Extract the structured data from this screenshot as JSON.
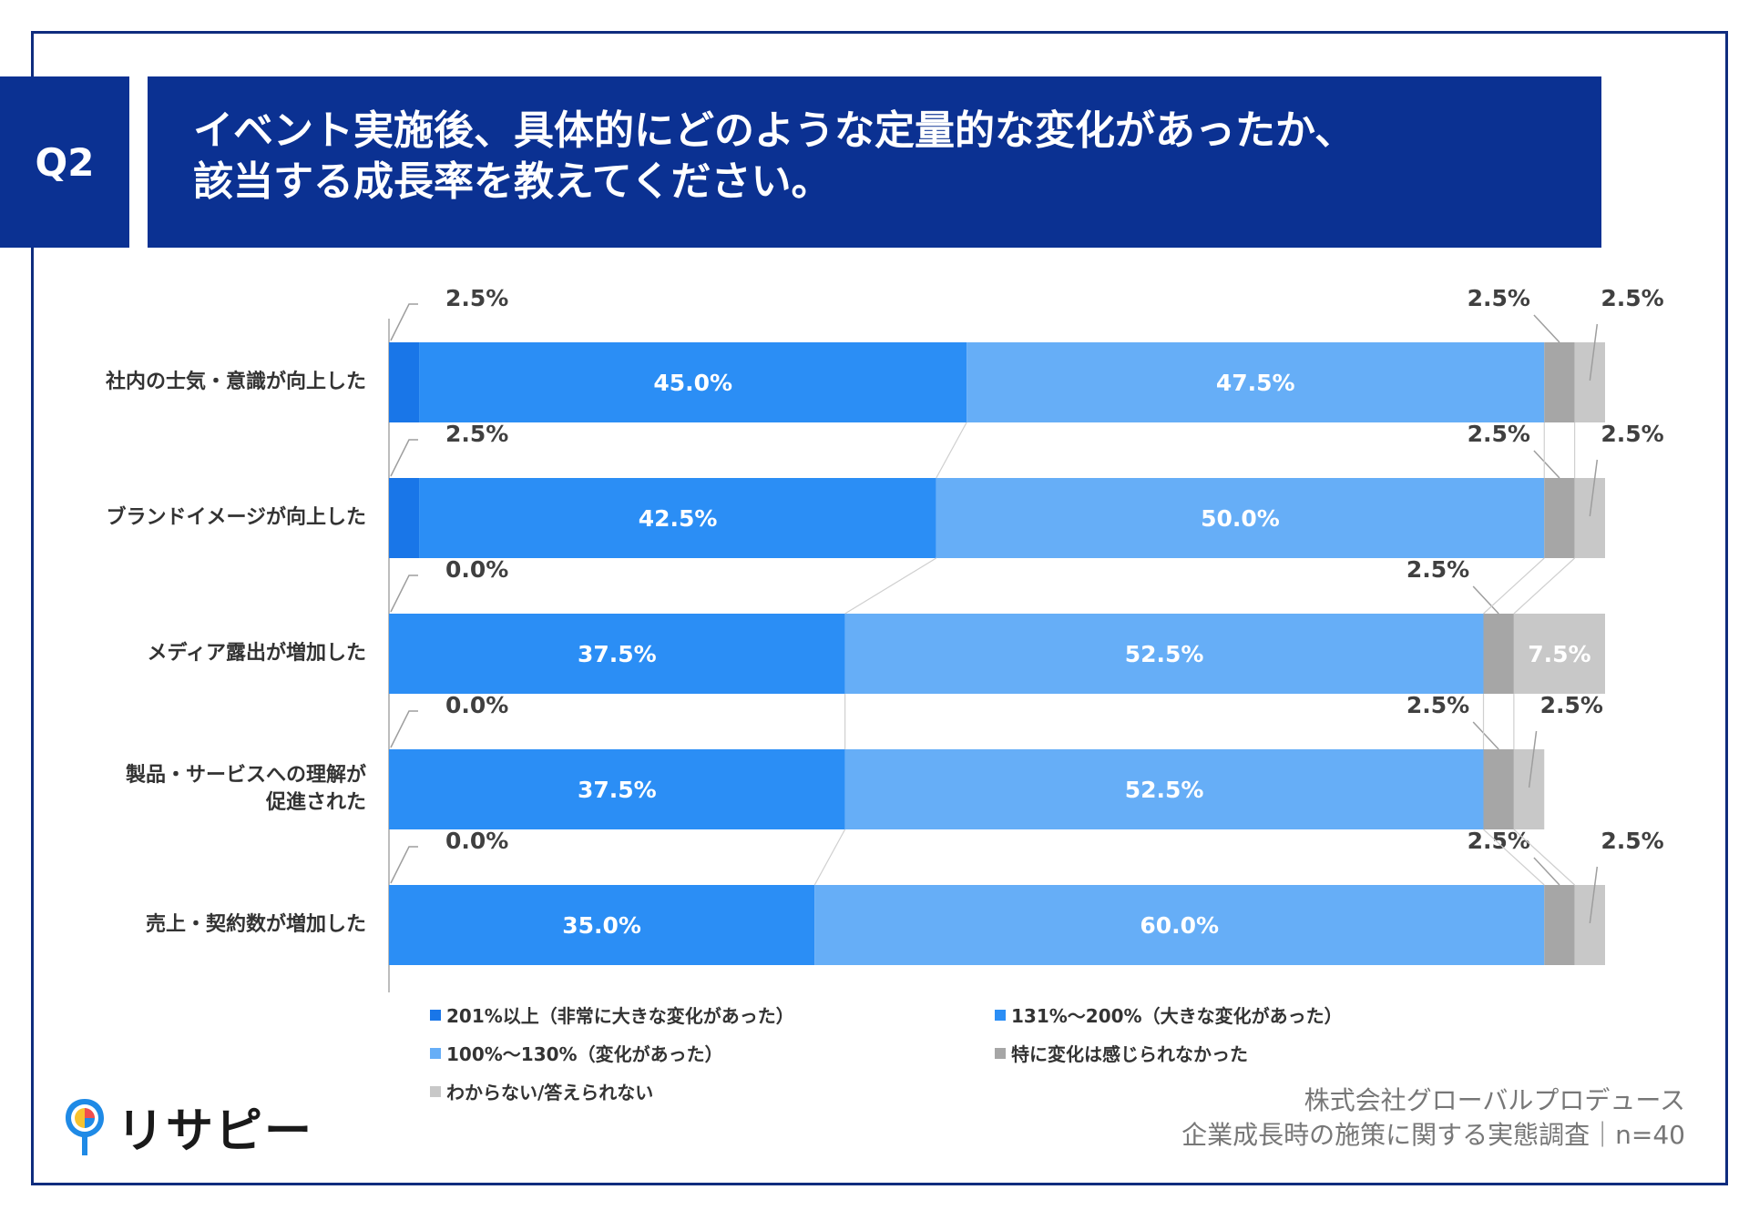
{
  "question_badge": "Q2",
  "title_lines": [
    "イベント実施後、具体的にどのような定量的な変化があったか、",
    "該当する成長率を教えてください。"
  ],
  "chart_data": {
    "type": "bar",
    "orientation": "horizontal",
    "stacked": true,
    "unit": "%",
    "categories": [
      "社内の士気・意識が向上した",
      "ブランドイメージが向上した",
      "メディア露出が増加した",
      "製品・サービスへの理解が促進された",
      "売上・契約数が増加した"
    ],
    "category_lines": [
      [
        "社内の士気・意識が向上した"
      ],
      [
        "ブランドイメージが向上した"
      ],
      [
        "メディア露出が増加した"
      ],
      [
        "製品・サービスへの理解が",
        "促進された"
      ],
      [
        "売上・契約数が増加した"
      ]
    ],
    "series": [
      {
        "name": "201%以上（非常に大きな変化があった）",
        "color": "#1976e8",
        "values": [
          2.5,
          2.5,
          0.0,
          0.0,
          0.0
        ]
      },
      {
        "name": "131%～200%（大きな変化があった）",
        "color": "#2b8ef5",
        "values": [
          45.0,
          42.5,
          37.5,
          37.5,
          35.0
        ]
      },
      {
        "name": "100%～130%（変化があった）",
        "color": "#66aef7",
        "values": [
          47.5,
          50.0,
          52.5,
          52.5,
          60.0
        ]
      },
      {
        "name": "特に変化は感じられなかった",
        "color": "#a6a6a6",
        "values": [
          2.5,
          2.5,
          2.5,
          2.5,
          2.5
        ]
      },
      {
        "name": "わからない/答えられない",
        "color": "#c8c8c8",
        "values": [
          2.5,
          2.5,
          7.5,
          2.5,
          2.5
        ]
      }
    ],
    "xlim": [
      0,
      100
    ],
    "legend_position": "bottom"
  },
  "footer": {
    "company": "株式会社グローバルプロデュース",
    "survey": "企業成長時の施策に関する実態調査｜n=40"
  },
  "logo": {
    "text": "リサピー"
  }
}
